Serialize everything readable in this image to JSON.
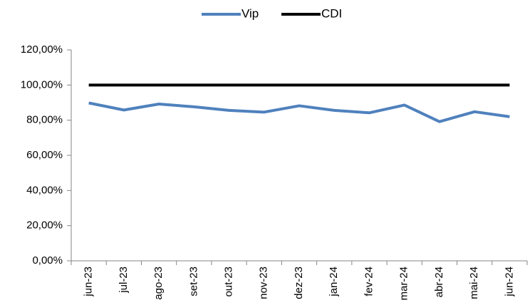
{
  "chart_data": {
    "type": "line",
    "categories": [
      "jun-23",
      "jul-23",
      "ago-23",
      "set-23",
      "out-23",
      "nov-23",
      "dez-23",
      "jan-24",
      "fev-24",
      "mar-24",
      "abr-24",
      "mai-24",
      "jun-24"
    ],
    "series": [
      {
        "name": "Vip",
        "color": "#4f81bd",
        "values": [
          89.8,
          85.8,
          89.2,
          87.6,
          85.6,
          84.6,
          88.2,
          85.6,
          84.2,
          88.6,
          79.2,
          84.8,
          82.0
        ]
      },
      {
        "name": "CDI",
        "color": "#000000",
        "values": [
          100,
          100,
          100,
          100,
          100,
          100,
          100,
          100,
          100,
          100,
          100,
          100,
          100
        ]
      }
    ],
    "ylim": [
      0,
      120
    ],
    "yticks": [
      {
        "value": 0,
        "label": "0,00%"
      },
      {
        "value": 20,
        "label": "20,00%"
      },
      {
        "value": 40,
        "label": "40,00%"
      },
      {
        "value": 60,
        "label": "60,00%"
      },
      {
        "value": 80,
        "label": "80,00%"
      },
      {
        "value": 100,
        "label": "100,00%"
      },
      {
        "value": 120,
        "label": "120,00%"
      }
    ],
    "grid": false,
    "legend": "top"
  }
}
